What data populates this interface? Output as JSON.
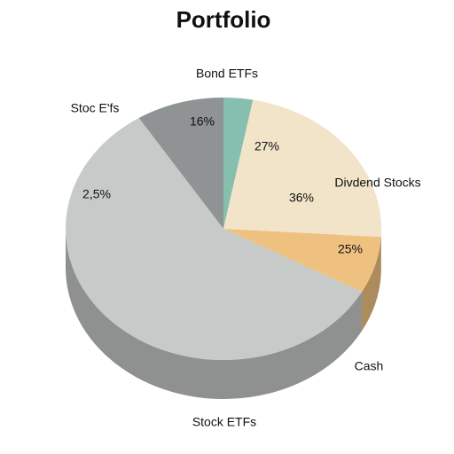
{
  "chart_data": {
    "type": "pie",
    "title": "Portfolio",
    "categories": [
      "Bond ETFs",
      "Divdend Stocks",
      "Cash",
      "Stock ETFs",
      "Stoc E'fs"
    ],
    "values": [
      3,
      23,
      7,
      58,
      9
    ],
    "colors": [
      "#86bfae",
      "#f2e4c8",
      "#efc180",
      "#c6cac9",
      "#8f9394"
    ],
    "annotations": [
      "16%",
      "27%",
      "36%",
      "25%",
      "2,5%"
    ]
  }
}
